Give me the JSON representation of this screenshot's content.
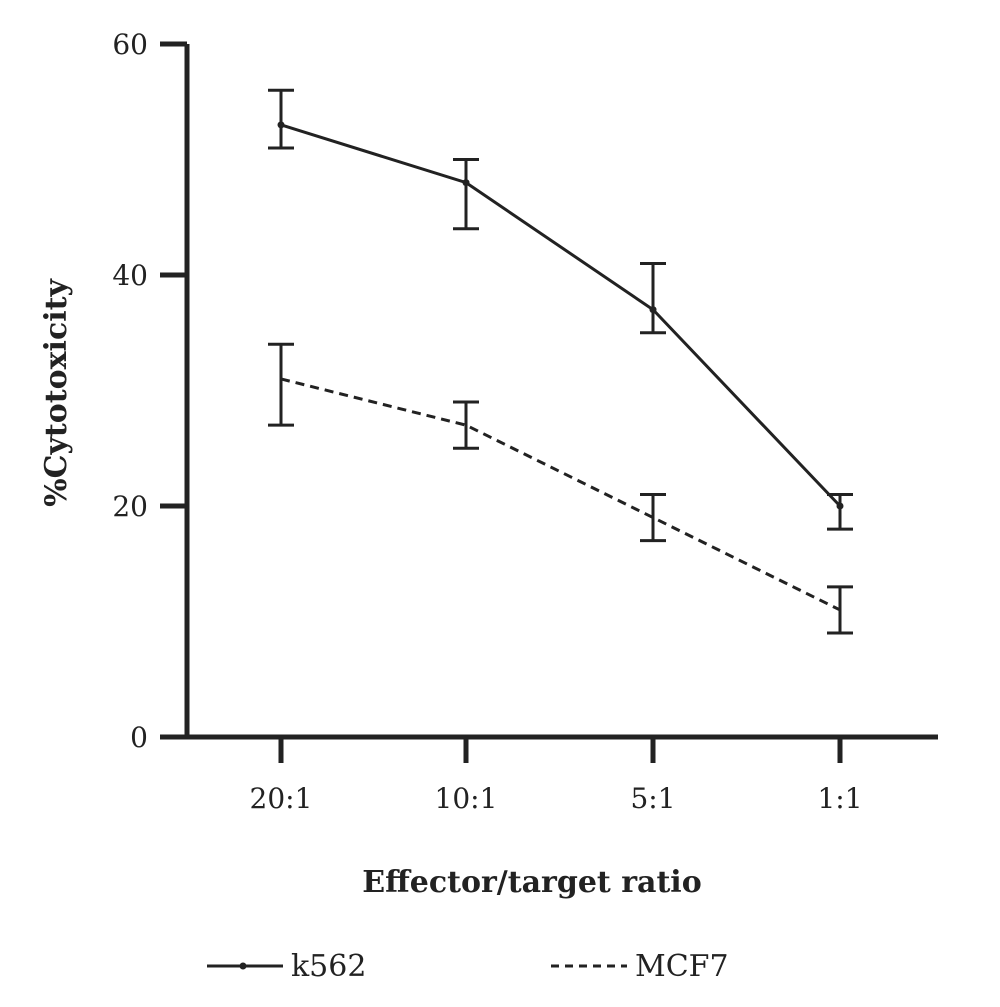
{
  "chart_data": {
    "type": "line",
    "title": "",
    "xlabel": "Effector/target ratio",
    "ylabel": "%Cytotoxicity",
    "categories": [
      "20:1",
      "10:1",
      "5:1",
      "1:1"
    ],
    "ylim": [
      0,
      60
    ],
    "yticks": [
      "0",
      "20",
      "40",
      "60"
    ],
    "grid": false,
    "legend_position": "bottom",
    "series": [
      {
        "name": "k562",
        "line_style": "solid",
        "color": "#222222",
        "values": [
          53,
          48,
          37,
          20
        ],
        "err_low": [
          51,
          44,
          35,
          18
        ],
        "err_high": [
          56,
          50,
          41,
          21
        ]
      },
      {
        "name": "MCF7",
        "line_style": "dashed",
        "color": "#222222",
        "values": [
          31,
          27,
          19,
          11
        ],
        "err_low": [
          27,
          25,
          17,
          9
        ],
        "err_high": [
          34,
          29,
          21,
          13
        ]
      }
    ]
  }
}
